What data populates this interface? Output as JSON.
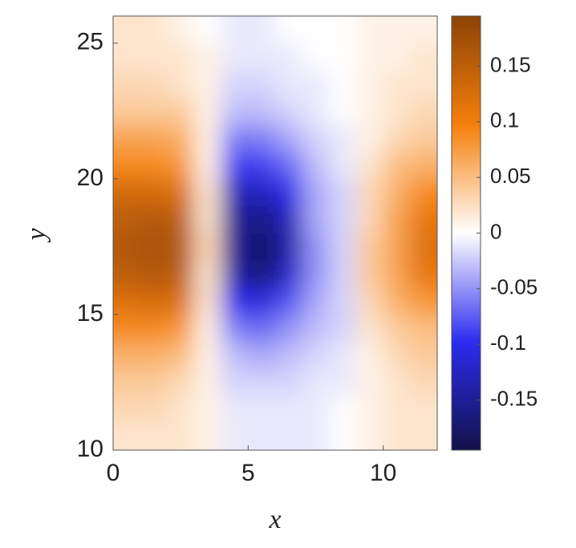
{
  "chart_data": {
    "type": "heatmap",
    "xlabel": "x",
    "ylabel": "y",
    "x": [
      0.5,
      1.5,
      2.5,
      3.5,
      4.5,
      5.5,
      6.5,
      7.5,
      8.5,
      9.5,
      10.5,
      11.5
    ],
    "y": [
      10.5,
      11.5,
      12.5,
      13.5,
      14.5,
      15.5,
      16.5,
      17.5,
      18.5,
      19.5,
      20.5,
      21.5,
      22.5,
      23.5,
      24.5,
      25.5
    ],
    "z": [
      [
        0.02,
        0.02,
        0.02,
        0.01,
        -0.01,
        -0.01,
        -0.01,
        -0.01,
        0,
        0.01,
        0.02,
        0.02
      ],
      [
        0.03,
        0.03,
        0.02,
        0.01,
        -0.01,
        -0.01,
        -0.01,
        -0.01,
        0,
        0.01,
        0.02,
        0.02
      ],
      [
        0.04,
        0.04,
        0.03,
        0.01,
        -0.02,
        -0.02,
        -0.02,
        -0.01,
        -0.01,
        0.01,
        0.02,
        0.03
      ],
      [
        0.06,
        0.06,
        0.05,
        0.01,
        -0.03,
        -0.04,
        -0.03,
        -0.02,
        -0.01,
        0.01,
        0.03,
        0.04
      ],
      [
        0.09,
        0.09,
        0.08,
        0.01,
        -0.06,
        -0.07,
        -0.05,
        -0.03,
        -0.02,
        0.02,
        0.04,
        0.05
      ],
      [
        0.12,
        0.13,
        0.12,
        0.02,
        -0.1,
        -0.11,
        -0.08,
        -0.04,
        -0.02,
        0.03,
        0.06,
        0.08
      ],
      [
        0.15,
        0.16,
        0.15,
        0.02,
        -0.14,
        -0.17,
        -0.12,
        -0.05,
        -0.02,
        0.04,
        0.07,
        0.11
      ],
      [
        0.16,
        0.17,
        0.16,
        0.03,
        -0.15,
        -0.18,
        -0.14,
        -0.05,
        -0.02,
        0.04,
        0.07,
        0.12
      ],
      [
        0.15,
        0.16,
        0.15,
        0.02,
        -0.15,
        -0.16,
        -0.13,
        -0.04,
        -0.02,
        0.03,
        0.07,
        0.11
      ],
      [
        0.13,
        0.13,
        0.12,
        0.02,
        -0.13,
        -0.13,
        -0.1,
        -0.04,
        -0.02,
        0.03,
        0.06,
        0.09
      ],
      [
        0.09,
        0.09,
        0.08,
        0.01,
        -0.09,
        -0.09,
        -0.07,
        -0.03,
        -0.01,
        0.02,
        0.05,
        0.06
      ],
      [
        0.07,
        0.07,
        0.06,
        0.01,
        -0.06,
        -0.06,
        -0.04,
        -0.02,
        -0.01,
        0.01,
        0.03,
        0.04
      ],
      [
        0.04,
        0.04,
        0.04,
        0.01,
        -0.03,
        -0.03,
        -0.02,
        -0.01,
        0,
        0.01,
        0.02,
        0.03
      ],
      [
        0.03,
        0.03,
        0.02,
        0.01,
        -0.02,
        -0.02,
        -0.01,
        -0.01,
        0,
        0.01,
        0.02,
        0.02
      ],
      [
        0.02,
        0.02,
        0.02,
        0.01,
        -0.01,
        -0.01,
        -0.01,
        0,
        0,
        0.01,
        0.01,
        0.02
      ],
      [
        0.02,
        0.02,
        0.01,
        0,
        -0.01,
        -0.01,
        0,
        0,
        0,
        0.01,
        0.01,
        0.01
      ]
    ],
    "xlim": [
      0,
      12
    ],
    "xticks": [
      0,
      5,
      10
    ],
    "ylim": [
      10,
      26
    ],
    "yticks": [
      10,
      15,
      20,
      25
    ],
    "clim": [
      -0.195,
      0.195
    ],
    "cticks": [
      -0.15,
      -0.1,
      -0.05,
      0,
      0.05,
      0.1,
      0.15
    ],
    "colormap": [
      "#12124a",
      "#2c2cf0",
      "#ffffff",
      "#f57f0a",
      "#8c4306"
    ]
  }
}
